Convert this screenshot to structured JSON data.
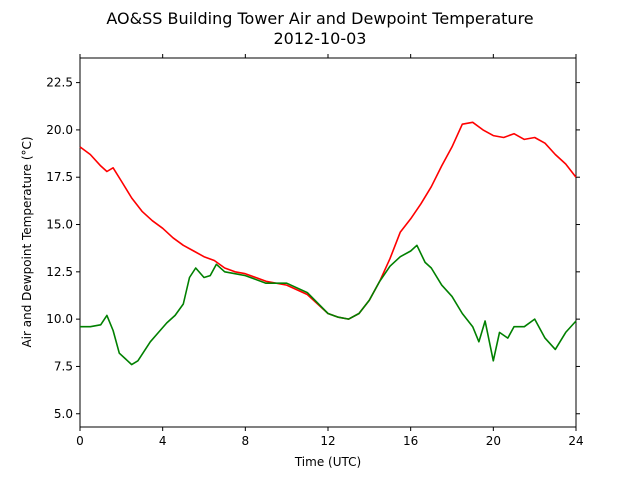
{
  "chart_data": {
    "type": "line",
    "title": "AO&SS Building Tower Air and Dewpoint Temperature",
    "subtitle": "2012-10-03",
    "xlabel": "Time (UTC)",
    "ylabel": "Air and Dewpoint Temperature (°C)",
    "xlim": [
      0,
      24
    ],
    "ylim": [
      4.3,
      23.8
    ],
    "xticks": [
      0,
      4,
      8,
      12,
      16,
      20,
      24
    ],
    "yticks": [
      5.0,
      7.5,
      10.0,
      12.5,
      15.0,
      17.5,
      20.0,
      22.5
    ],
    "grid": false,
    "series": [
      {
        "color": "#ff0000",
        "x": [
          0,
          0.5,
          1.0,
          1.3,
          1.6,
          2.0,
          2.5,
          3.0,
          3.5,
          4.0,
          4.5,
          5.0,
          5.5,
          6.0,
          6.5,
          7.0,
          7.5,
          8.0,
          9.0,
          10.0,
          11.0,
          12.0,
          12.5,
          13.0,
          13.5,
          14.0,
          14.5,
          15.0,
          15.5,
          16.0,
          16.5,
          17.0,
          17.5,
          18.0,
          18.5,
          19.0,
          19.5,
          20.0,
          20.5,
          21.0,
          21.5,
          22.0,
          22.5,
          23.0,
          23.5,
          24.0
        ],
        "values": [
          19.1,
          18.7,
          18.1,
          17.8,
          18.0,
          17.3,
          16.4,
          15.7,
          15.2,
          14.8,
          14.3,
          13.9,
          13.6,
          13.3,
          13.1,
          12.7,
          12.5,
          12.4,
          12.0,
          11.8,
          11.3,
          10.3,
          10.1,
          10.0,
          10.3,
          11.0,
          12.0,
          13.2,
          14.6,
          15.3,
          16.1,
          17.0,
          18.1,
          19.1,
          20.3,
          20.4,
          20.0,
          19.7,
          19.6,
          19.8,
          19.5,
          19.6,
          19.3,
          18.7,
          18.2,
          17.5
        ]
      },
      {
        "color": "#008000",
        "x": [
          0,
          0.5,
          1.0,
          1.3,
          1.6,
          1.9,
          2.2,
          2.5,
          2.8,
          3.1,
          3.4,
          3.8,
          4.2,
          4.6,
          5.0,
          5.3,
          5.6,
          6.0,
          6.3,
          6.6,
          7.0,
          7.5,
          8.0,
          9.0,
          10.0,
          11.0,
          12.0,
          12.5,
          13.0,
          13.5,
          14.0,
          14.5,
          15.0,
          15.5,
          16.0,
          16.3,
          16.7,
          17.0,
          17.5,
          18.0,
          18.5,
          19.0,
          19.3,
          19.6,
          20.0,
          20.3,
          20.7,
          21.0,
          21.5,
          22.0,
          22.5,
          23.0,
          23.5,
          24.0
        ],
        "values": [
          9.6,
          9.6,
          9.7,
          10.2,
          9.4,
          8.2,
          7.9,
          7.6,
          7.8,
          8.3,
          8.8,
          9.3,
          9.8,
          10.2,
          10.8,
          12.2,
          12.7,
          12.2,
          12.3,
          12.9,
          12.5,
          12.4,
          12.3,
          11.9,
          11.9,
          11.4,
          10.3,
          10.1,
          10.0,
          10.3,
          11.0,
          12.0,
          12.8,
          13.3,
          13.6,
          13.9,
          13.0,
          12.7,
          11.8,
          11.2,
          10.3,
          9.6,
          8.8,
          9.9,
          7.8,
          9.3,
          9.0,
          9.6,
          9.6,
          10.0,
          9.0,
          8.4,
          9.3,
          9.9
        ]
      }
    ]
  }
}
